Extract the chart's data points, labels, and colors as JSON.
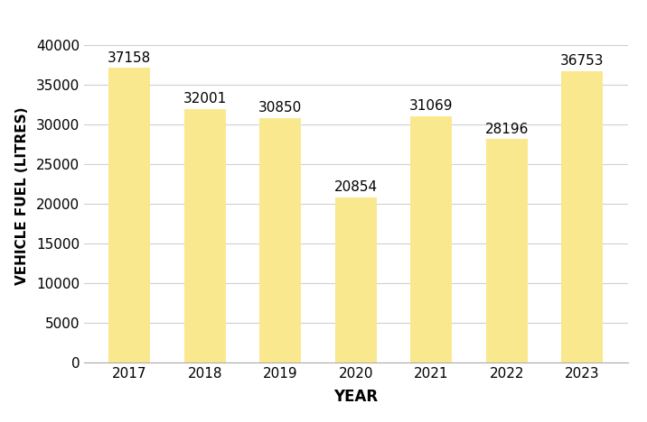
{
  "years": [
    "2017",
    "2018",
    "2019",
    "2020",
    "2021",
    "2022",
    "2023"
  ],
  "values": [
    37158,
    32001,
    30850,
    20854,
    31069,
    28196,
    36753
  ],
  "bar_color": "#FAE88F",
  "bar_edgecolor": "none",
  "xlabel": "YEAR",
  "ylabel": "VEHICLE FUEL (LITRES)",
  "ylim": [
    0,
    42000
  ],
  "yticks": [
    0,
    5000,
    10000,
    15000,
    20000,
    25000,
    30000,
    35000,
    40000
  ],
  "xlabel_fontsize": 12,
  "ylabel_fontsize": 11,
  "tick_fontsize": 11,
  "annotation_fontsize": 11,
  "annotation_fontweight": "normal",
  "background_color": "#ffffff",
  "grid_color": "#d0d0d0",
  "bar_width": 0.55
}
